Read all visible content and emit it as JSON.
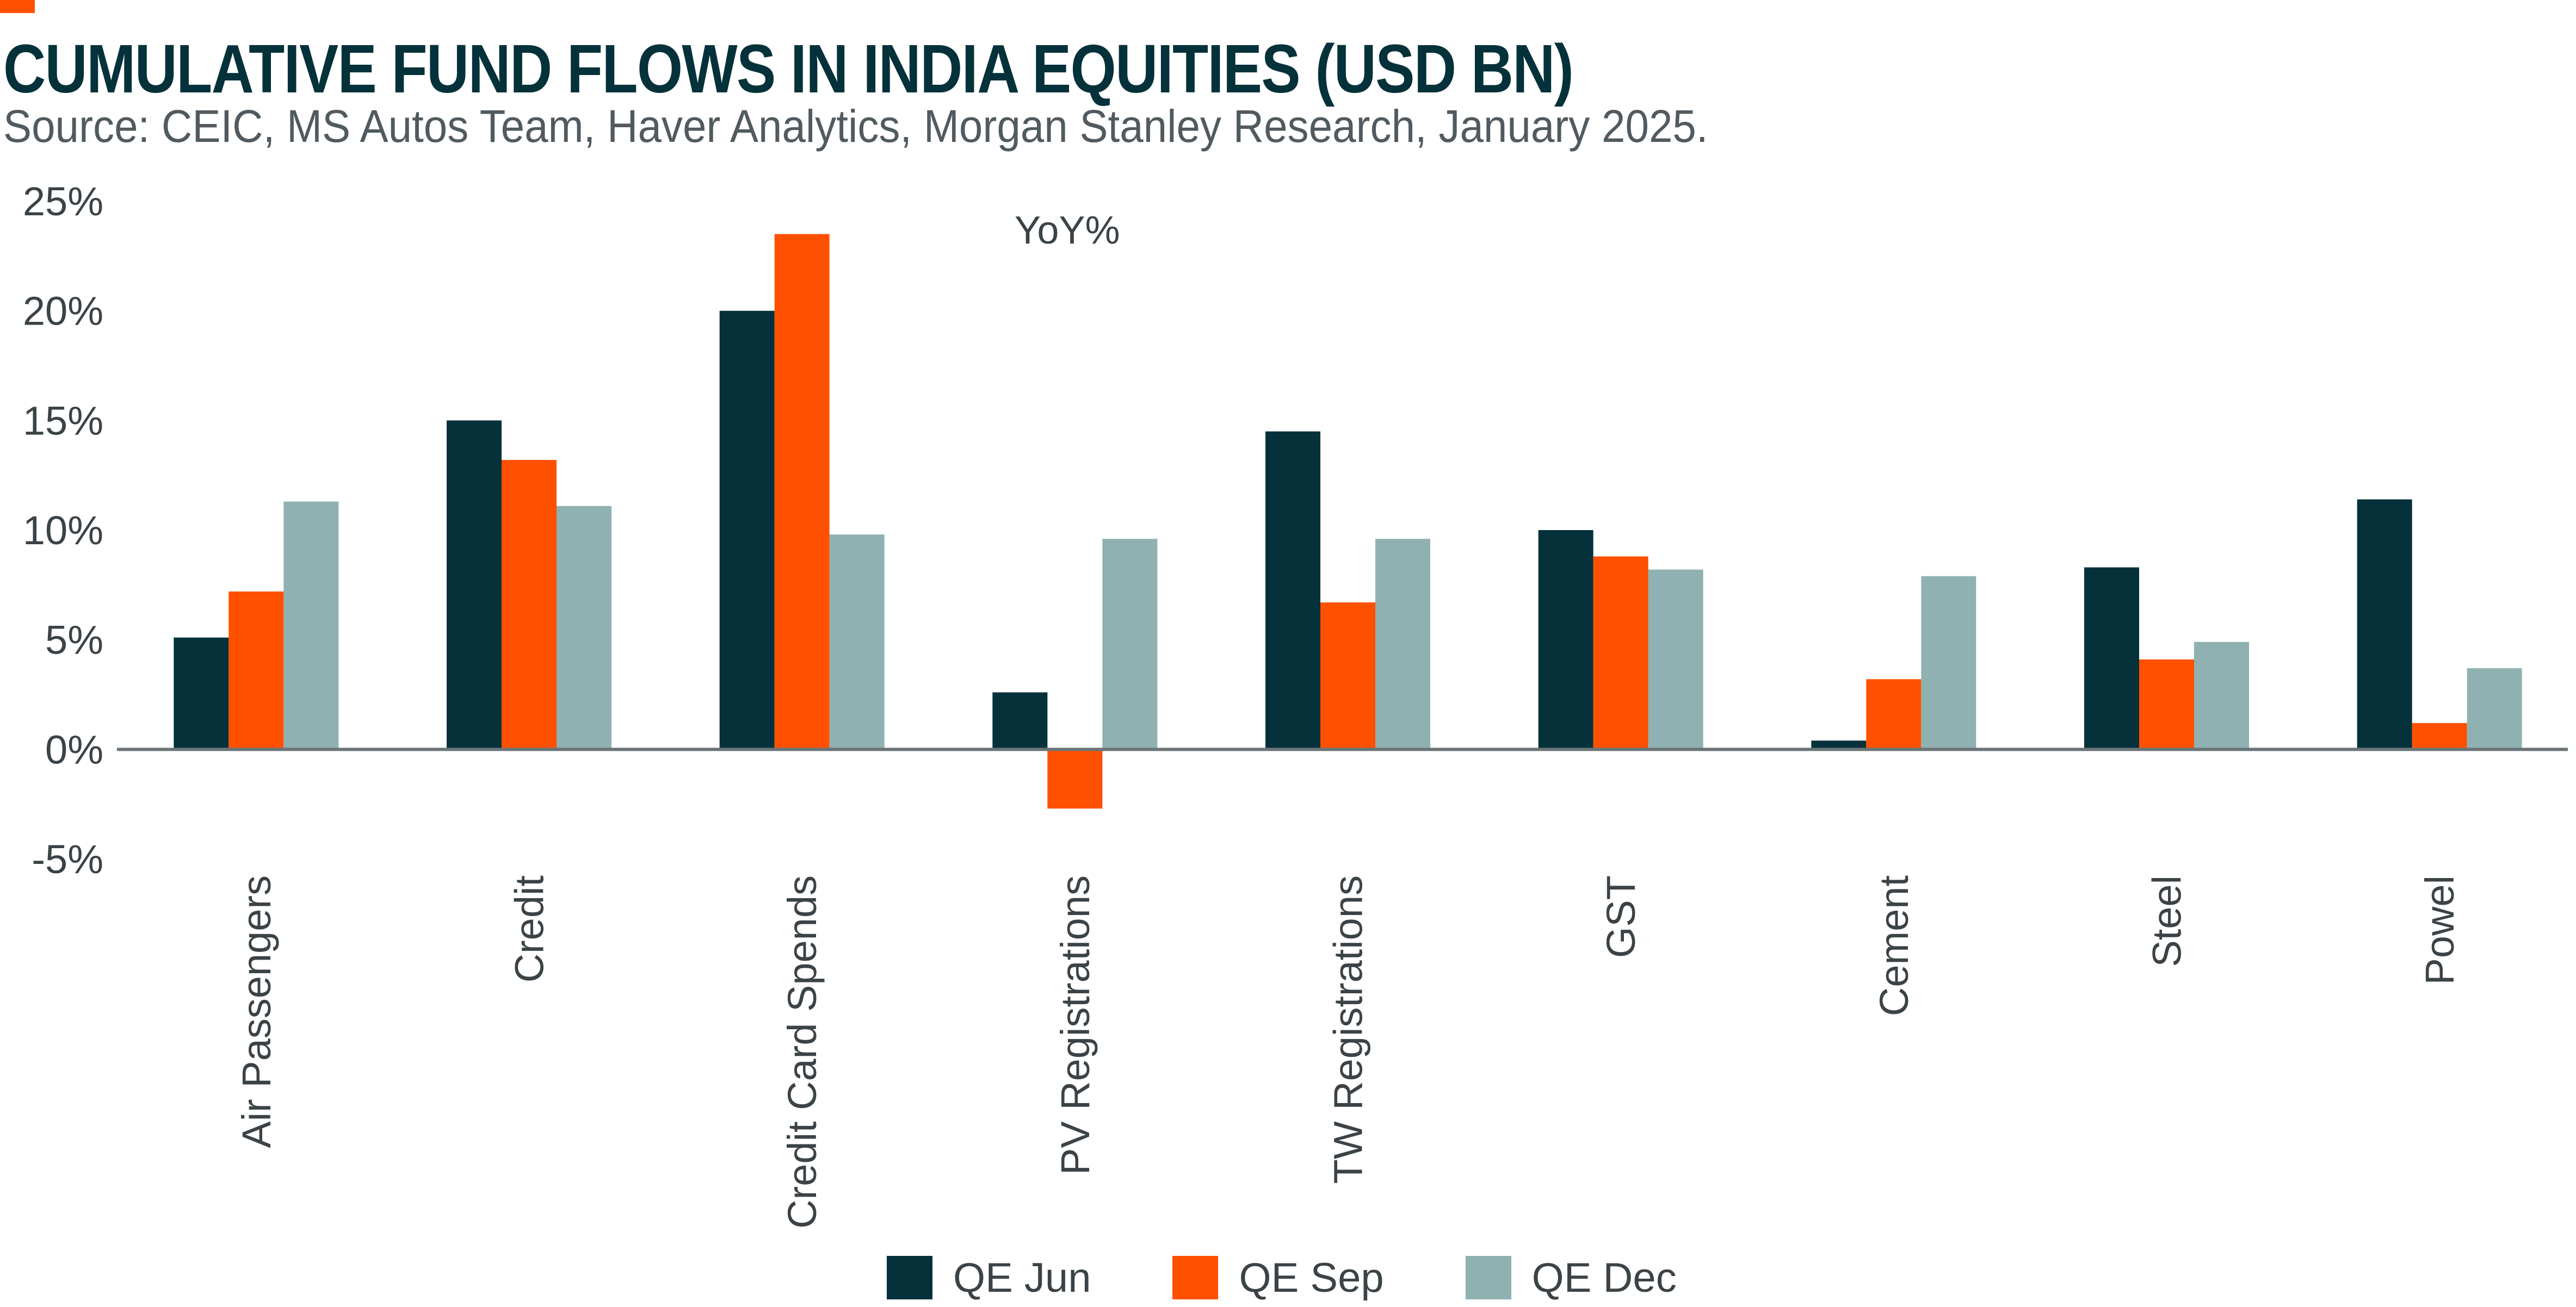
{
  "header": {
    "title": "CUMULATIVE FUND FLOWS IN INDIA EQUITIES (USD BN)",
    "source": "Source: CEIC, MS Autos Team, Haver Analytics, Morgan Stanley Research, January 2025."
  },
  "colors": {
    "accent": "#ff5000",
    "qe_jun": "#04313a",
    "qe_sep": "#ff5000",
    "qe_dec": "#8fb1b1",
    "axis": "#6b7478"
  },
  "chart_data": {
    "type": "bar",
    "title": "CUMULATIVE FUND FLOWS IN INDIA EQUITIES (USD BN)",
    "annotation": "YoY%",
    "categories": [
      "Air Passengers",
      "Credit",
      "Credit Card Spends",
      "PV Registrations",
      "TW Registrations",
      "GST",
      "Cement",
      "Steel",
      "Powel"
    ],
    "series": [
      {
        "name": "QE Jun",
        "values": [
          5.1,
          15.0,
          20.0,
          2.6,
          14.5,
          10.0,
          0.4,
          8.3,
          11.4
        ]
      },
      {
        "name": "QE Sep",
        "values": [
          7.2,
          13.2,
          23.5,
          -2.7,
          6.7,
          8.8,
          3.2,
          4.1,
          1.2
        ]
      },
      {
        "name": "QE Dec",
        "values": [
          11.3,
          11.1,
          9.8,
          9.6,
          9.6,
          8.2,
          7.9,
          4.9,
          3.7
        ]
      }
    ],
    "yticks": [
      "25%",
      "20%",
      "15%",
      "10%",
      "5%",
      "0%",
      "-5%"
    ],
    "ylim": [
      -5,
      25
    ],
    "xlabel": "",
    "ylabel": "",
    "grid": false,
    "legend_position": "bottom"
  }
}
